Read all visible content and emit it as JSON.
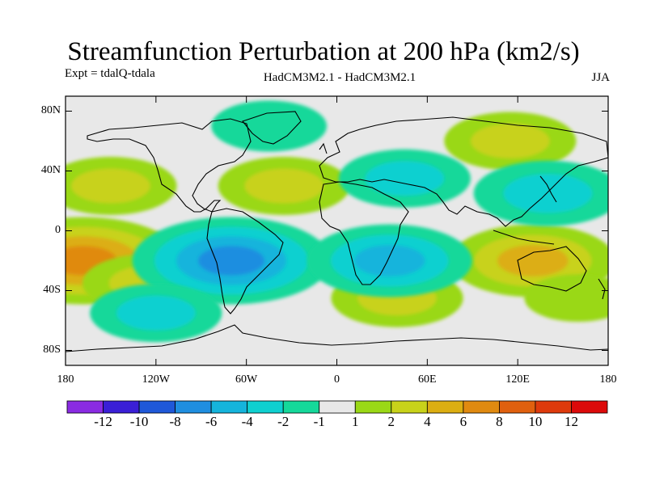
{
  "title": "Streamfunction Perturbation at 200 hPa (km2/s)",
  "experiment": "Expt = tdalQ-tdala",
  "model": "HadCM3M2.1 - HadCM3M2.1",
  "season": "JJA",
  "y_axis": {
    "labels": [
      "80N",
      "40N",
      "0",
      "40S",
      "80S"
    ],
    "lats": [
      80,
      40,
      0,
      -40,
      -80
    ]
  },
  "x_axis": {
    "labels": [
      "180",
      "120W",
      "60W",
      "0",
      "60E",
      "120E",
      "180"
    ],
    "lons": [
      -180,
      -120,
      -60,
      0,
      60,
      120,
      180
    ]
  },
  "colorbar": {
    "labels": [
      "-12",
      "-10",
      "-8",
      "-6",
      "-4",
      "-2",
      "-1",
      "1",
      "2",
      "4",
      "6",
      "8",
      "10",
      "12"
    ],
    "colors": [
      "#8a2be2",
      "#3a1fd6",
      "#1f58d8",
      "#1f8ee0",
      "#15b4dc",
      "#0fd0d0",
      "#15d89a",
      "#e8e8e8",
      "#9ad816",
      "#c8d21a",
      "#dcae12",
      "#e08a10",
      "#e0600e",
      "#de3a0c",
      "#dc0a0a"
    ]
  },
  "chart_data": {
    "type": "filled-contour-map",
    "field": "streamfunction perturbation",
    "level_hPa": 200,
    "units": "km2/s",
    "season": "JJA",
    "lon_range": [
      -180,
      180
    ],
    "lat_range": [
      -90,
      90
    ],
    "anomaly_regions": [
      {
        "name": "s-pacific-positive",
        "lon": -168,
        "lat": -20,
        "value": 7
      },
      {
        "name": "s-central-pacific-positive",
        "lon": -125,
        "lat": -35,
        "value": 3
      },
      {
        "name": "n-pacific-positive",
        "lon": -150,
        "lat": 30,
        "value": 3
      },
      {
        "name": "n-atlantic-positive",
        "lon": -35,
        "lat": 30,
        "value": 3
      },
      {
        "name": "eurasia-positive",
        "lon": 115,
        "lat": 60,
        "value": 3
      },
      {
        "name": "australia-positive",
        "lon": 130,
        "lat": -20,
        "value": 5
      },
      {
        "name": "s-ocean-positive",
        "lon": 160,
        "lat": -45,
        "value": 1.5
      },
      {
        "name": "s-africa-positive",
        "lon": 40,
        "lat": -45,
        "value": 3
      },
      {
        "name": "tropical-south-america-negative",
        "lon": -70,
        "lat": -20,
        "value": -7
      },
      {
        "name": "south-atlantic-africa-negative",
        "lon": 35,
        "lat": -20,
        "value": -5
      },
      {
        "name": "s-pacific-negative",
        "lon": -120,
        "lat": -55,
        "value": -3
      },
      {
        "name": "nw-pacific-negative",
        "lon": 140,
        "lat": 25,
        "value": -4
      },
      {
        "name": "central-asia-negative",
        "lon": 45,
        "lat": 35,
        "value": -3
      },
      {
        "name": "arctic-negative",
        "lon": -45,
        "lat": 70,
        "value": -2
      }
    ]
  }
}
